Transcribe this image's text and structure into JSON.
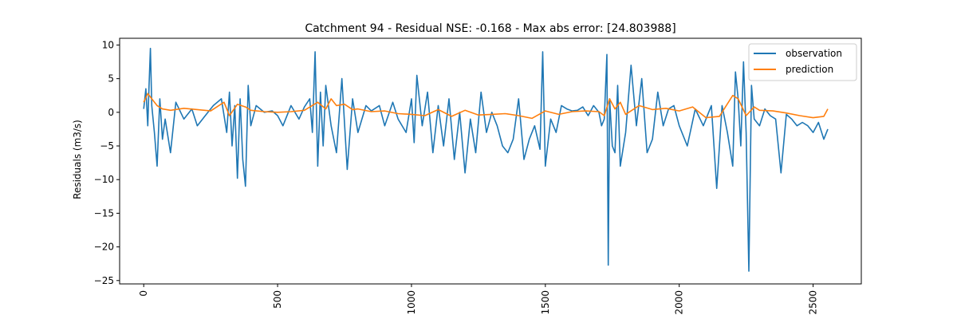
{
  "chart_data": {
    "type": "line",
    "title": "Catchment 94 - Residual NSE: -0.168 - Max abs error: [24.803988]",
    "xlabel": "",
    "ylabel": "Residuals (m3/s)",
    "xlim": [
      -90,
      2680
    ],
    "ylim": [
      -25.5,
      11.0
    ],
    "xticks": [
      0,
      500,
      1000,
      1500,
      2000,
      2500
    ],
    "xtick_labels": [
      "0",
      "500",
      "1000",
      "1500",
      "2000",
      "2500"
    ],
    "xtick_rotation": 90,
    "yticks": [
      10,
      5,
      0,
      -5,
      -10,
      -15,
      -20,
      -25
    ],
    "ytick_labels": [
      "10",
      "5",
      "0",
      "−5",
      "−10",
      "−15",
      "−20",
      "−25"
    ],
    "grid": false,
    "legend": {
      "placement": "top-right",
      "entries": [
        "observation",
        "prediction"
      ]
    },
    "series": [
      {
        "name": "observation",
        "color": "#1f77b4",
        "x": [
          0,
          8,
          15,
          20,
          25,
          30,
          40,
          50,
          60,
          70,
          80,
          100,
          120,
          150,
          180,
          200,
          230,
          260,
          290,
          310,
          320,
          330,
          340,
          350,
          360,
          370,
          380,
          390,
          400,
          420,
          450,
          480,
          500,
          520,
          550,
          580,
          600,
          620,
          630,
          640,
          650,
          660,
          670,
          680,
          700,
          720,
          740,
          760,
          780,
          800,
          830,
          850,
          880,
          900,
          930,
          950,
          980,
          1000,
          1010,
          1020,
          1040,
          1060,
          1080,
          1100,
          1120,
          1140,
          1160,
          1180,
          1200,
          1220,
          1240,
          1260,
          1280,
          1300,
          1320,
          1340,
          1360,
          1380,
          1400,
          1420,
          1440,
          1460,
          1480,
          1490,
          1500,
          1520,
          1540,
          1560,
          1580,
          1600,
          1620,
          1640,
          1660,
          1680,
          1700,
          1710,
          1720,
          1730,
          1735,
          1740,
          1750,
          1760,
          1770,
          1780,
          1800,
          1820,
          1840,
          1860,
          1880,
          1900,
          1920,
          1940,
          1960,
          1980,
          2000,
          2030,
          2060,
          2090,
          2120,
          2140,
          2160,
          2180,
          2200,
          2210,
          2220,
          2230,
          2240,
          2250,
          2260,
          2270,
          2280,
          2300,
          2320,
          2340,
          2360,
          2380,
          2400,
          2420,
          2440,
          2460,
          2480,
          2500,
          2520,
          2540,
          2555
        ],
        "y": [
          0.5,
          3.5,
          -2,
          4,
          9.5,
          1,
          -3,
          -8,
          2,
          -4,
          -1,
          -6,
          1.5,
          -1,
          0.5,
          -2,
          -0.5,
          1,
          2,
          -3,
          3,
          -5,
          1,
          -9.8,
          2,
          -7,
          -11,
          4,
          -2,
          1,
          0,
          0.2,
          -0.5,
          -2,
          1,
          -1,
          0.8,
          2,
          -3,
          9,
          -8,
          3,
          -5,
          4,
          -2,
          -6,
          5,
          -8.5,
          2,
          -3,
          1,
          0.2,
          1,
          -2,
          1.5,
          -1,
          -3,
          2,
          -4.5,
          5.5,
          -2,
          3,
          -6,
          1,
          -5,
          2,
          -7,
          0,
          -9,
          -1,
          -6,
          3,
          -3,
          0,
          -2,
          -5,
          -6,
          -4,
          2,
          -7,
          -4,
          -2,
          -5.5,
          9,
          -8,
          -1,
          -3,
          1,
          0.5,
          0.2,
          0.3,
          0.8,
          -0.5,
          1,
          0,
          -2,
          -1,
          8.6,
          -22.7,
          2,
          -5,
          -6,
          4,
          -8,
          -3,
          7,
          -2,
          5,
          -6,
          -4,
          3,
          -2,
          0.5,
          1,
          -2,
          -5,
          0.5,
          -2,
          1,
          -11.3,
          1,
          -3,
          -8,
          6,
          2,
          -5,
          7.5,
          -3,
          -23.6,
          4,
          -1,
          -2,
          0.5,
          -0.5,
          -1,
          -9,
          -0.3,
          -1,
          -2,
          -1.5,
          -2,
          -3,
          -1.5,
          -4,
          -2.5
        ]
      },
      {
        "name": "prediction",
        "color": "#ff7f0e",
        "x": [
          0,
          15,
          30,
          50,
          70,
          100,
          150,
          200,
          250,
          300,
          320,
          350,
          380,
          400,
          450,
          500,
          550,
          600,
          650,
          680,
          700,
          720,
          750,
          780,
          800,
          850,
          900,
          950,
          1000,
          1050,
          1100,
          1150,
          1200,
          1250,
          1300,
          1350,
          1400,
          1450,
          1500,
          1550,
          1600,
          1650,
          1700,
          1720,
          1740,
          1760,
          1780,
          1800,
          1850,
          1900,
          1950,
          2000,
          2050,
          2100,
          2150,
          2200,
          2220,
          2250,
          2280,
          2300,
          2350,
          2400,
          2450,
          2500,
          2540,
          2555
        ],
        "y": [
          1.5,
          2.8,
          2,
          1,
          0.5,
          0.3,
          0.6,
          0.4,
          0.2,
          1.5,
          -0.5,
          1.2,
          0.8,
          0.3,
          0.1,
          0,
          0.1,
          0.3,
          1.5,
          0.5,
          2,
          1,
          1.2,
          0.4,
          0.5,
          0.1,
          0.2,
          -0.2,
          -0.3,
          -0.5,
          0.4,
          -0.6,
          0.3,
          -0.4,
          -0.3,
          -0.2,
          -0.5,
          -0.9,
          0.2,
          -0.3,
          0.1,
          0.2,
          0.1,
          -0.5,
          2,
          0.5,
          1.5,
          -0.3,
          1,
          0.4,
          0.6,
          0.2,
          0.8,
          -0.8,
          -0.6,
          2.5,
          2,
          -0.5,
          0.8,
          0.3,
          0.2,
          -0.1,
          -0.5,
          -0.8,
          -0.6,
          0.5
        ]
      }
    ]
  }
}
